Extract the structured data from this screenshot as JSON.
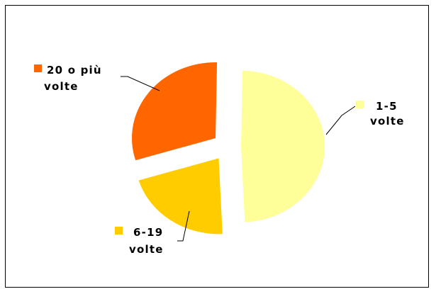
{
  "chart_data": {
    "type": "pie",
    "title": "",
    "exploded": true,
    "slices": [
      {
        "name": "1-5 volte",
        "lines": [
          "1-5",
          "volte"
        ],
        "value": 49,
        "color": "#FFFF99"
      },
      {
        "name": "6-19 volte",
        "lines": [
          "6-19",
          "volte"
        ],
        "value": 21,
        "color": "#FFCC00"
      },
      {
        "name": "20 o più volte",
        "lines": [
          "20 o più",
          "volte"
        ],
        "value": 30,
        "color": "#FF6600"
      }
    ]
  }
}
